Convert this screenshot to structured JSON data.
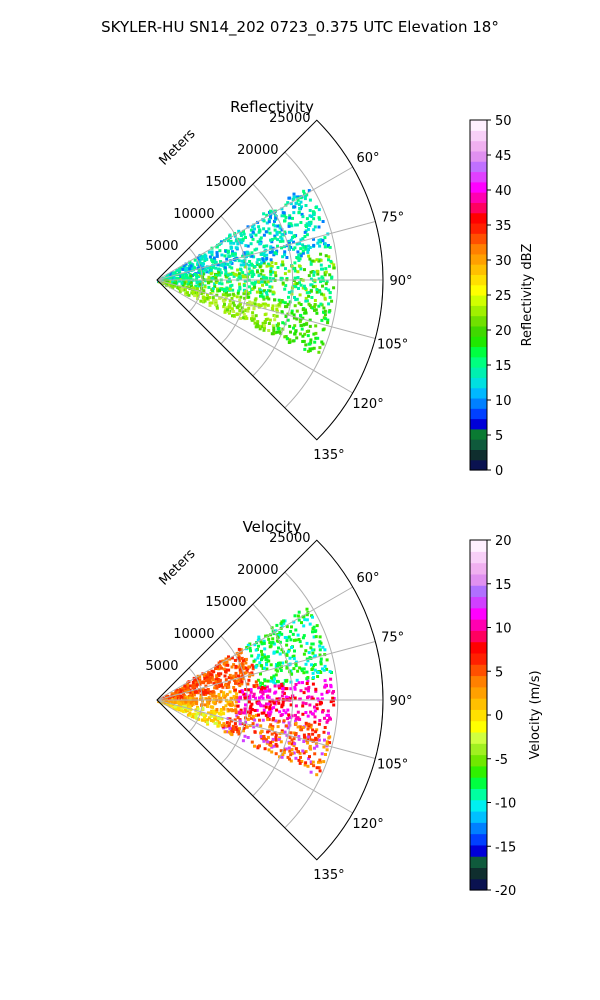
{
  "figure_title": "SKYLER-HU  SN14_202  0723_0.375 UTC Elevation 18°",
  "chart_data": [
    {
      "type": "polar-sector",
      "title": "Reflectivity",
      "radial_label": "Meters",
      "radial_ticks": [
        5000,
        10000,
        15000,
        20000,
        25000
      ],
      "radial_max": 25000,
      "angle_range_deg": [
        45,
        135
      ],
      "angle_ticks_deg": [
        60,
        75,
        90,
        105,
        120,
        135
      ],
      "angle_tick_labels": [
        "60°",
        "75°",
        "90°",
        "105°",
        "120°",
        "135°"
      ],
      "grid": true,
      "colorbar": {
        "label": "Reflectivity dBZ",
        "min": 0,
        "max": 50,
        "ticks": [
          0,
          5,
          10,
          15,
          20,
          25,
          30,
          35,
          40,
          45,
          50
        ],
        "colors": [
          "#0a1250",
          "#0f2e2e",
          "#0f5a3c",
          "#0a7a32",
          "#0000d8",
          "#0040ff",
          "#0080ff",
          "#00b8ff",
          "#00e0e0",
          "#00f0b0",
          "#00ff80",
          "#00ff40",
          "#20e800",
          "#40d800",
          "#70e000",
          "#a0f000",
          "#d0ff00",
          "#ffff00",
          "#ffe000",
          "#ffc000",
          "#ffa000",
          "#ff8000",
          "#ff5000",
          "#ff2000",
          "#ff0000",
          "#ff0060",
          "#ff00b0",
          "#ff00ff",
          "#e040ff",
          "#c070ff",
          "#e090f0",
          "#f0b0f0",
          "#f8d0f8",
          "#fff0ff"
        ]
      }
    },
    {
      "type": "polar-sector",
      "title": "Velocity",
      "radial_label": "Meters",
      "radial_ticks": [
        5000,
        10000,
        15000,
        20000,
        25000
      ],
      "radial_max": 25000,
      "angle_range_deg": [
        45,
        135
      ],
      "angle_ticks_deg": [
        60,
        75,
        90,
        105,
        120,
        135
      ],
      "angle_tick_labels": [
        "60°",
        "75°",
        "90°",
        "105°",
        "120°",
        "135°"
      ],
      "grid": true,
      "colorbar": {
        "label": "Velocity (m/s)",
        "min": -20,
        "max": 20,
        "ticks": [
          -20,
          -15,
          -10,
          -5,
          0,
          5,
          10,
          15,
          20
        ],
        "colors": [
          "#0a1250",
          "#0f2e2e",
          "#0f5a3c",
          "#0000d8",
          "#0040ff",
          "#0080ff",
          "#00c0ff",
          "#00f0f0",
          "#00ffa0",
          "#00ff40",
          "#30f000",
          "#70e800",
          "#a0f020",
          "#d0ff40",
          "#ffff00",
          "#ffe000",
          "#ffc000",
          "#ffa000",
          "#ff8000",
          "#ff5000",
          "#ff2000",
          "#ff0000",
          "#ff0060",
          "#ff00b0",
          "#ff00ff",
          "#d040ff",
          "#b070ff",
          "#e090f0",
          "#f0b0f0",
          "#f8d0f8",
          "#fff0ff"
        ]
      }
    }
  ]
}
